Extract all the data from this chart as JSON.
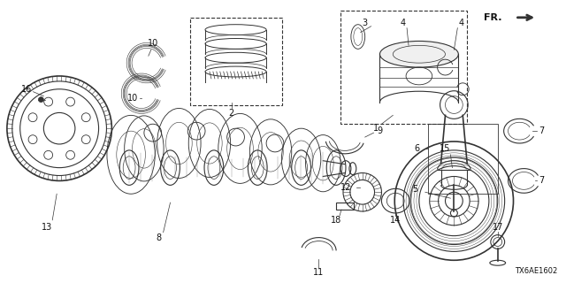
{
  "bg_color": "#ffffff",
  "line_color": "#333333",
  "label_color": "#111111",
  "diagram_code": "TX6AE1602",
  "fr_label": "FR.",
  "figsize": [
    6.4,
    3.2
  ],
  "dpi": 100
}
